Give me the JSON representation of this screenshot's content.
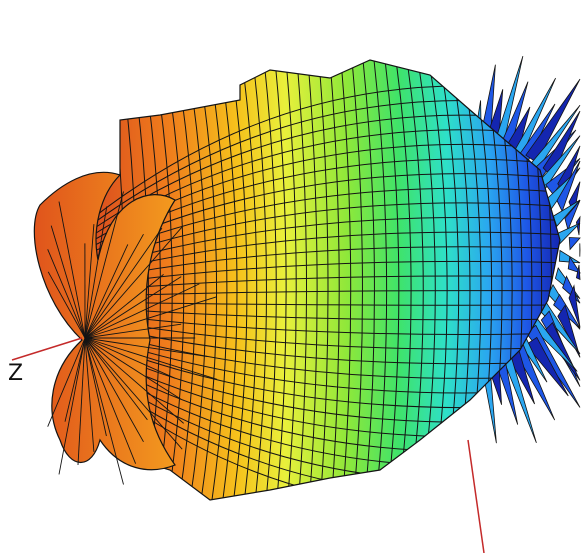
{
  "figure": {
    "axis_labels": {
      "z": "Z"
    },
    "colormap": [
      "#d94a1e",
      "#f07f1c",
      "#f6c21c",
      "#e9f03b",
      "#8fe83a",
      "#3fe36a",
      "#2ee0c8",
      "#2aa6f0",
      "#1e57e6",
      "#1426b0"
    ],
    "mesh_line_color": "#141414",
    "axis_line_color": "#c42a2a",
    "background": "#ffffff"
  }
}
